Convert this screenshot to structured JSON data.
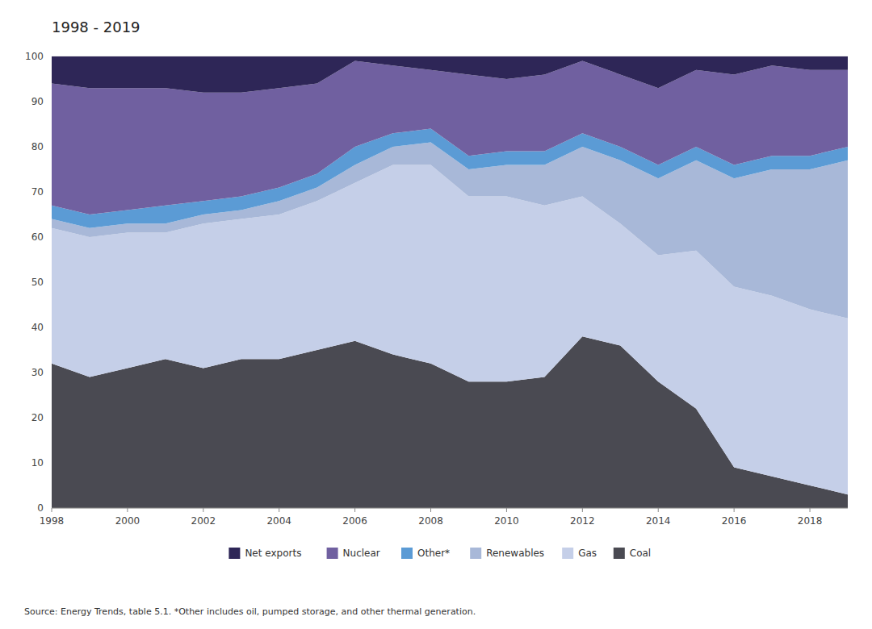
{
  "chart_data": {
    "type": "area",
    "stacked": true,
    "title": "1998 - 2019",
    "x": [
      1998,
      1999,
      2000,
      2001,
      2002,
      2003,
      2004,
      2005,
      2006,
      2007,
      2008,
      2009,
      2010,
      2011,
      2012,
      2013,
      2014,
      2015,
      2016,
      2017,
      2018,
      2019
    ],
    "series": [
      {
        "name": "Coal",
        "color": "#4a4a52",
        "values": [
          32,
          29,
          31,
          33,
          31,
          33,
          33,
          35,
          37,
          34,
          32,
          28,
          28,
          29,
          38,
          36,
          28,
          22,
          9,
          7,
          5,
          3
        ]
      },
      {
        "name": "Gas",
        "color": "#c5cfe8",
        "values": [
          30,
          31,
          30,
          28,
          32,
          31,
          32,
          33,
          35,
          42,
          44,
          41,
          41,
          38,
          31,
          27,
          28,
          35,
          40,
          40,
          39,
          39
        ]
      },
      {
        "name": "Renewables",
        "color": "#a8b8d8",
        "values": [
          2,
          2,
          2,
          2,
          2,
          2,
          3,
          3,
          4,
          4,
          5,
          6,
          7,
          9,
          11,
          14,
          17,
          20,
          24,
          28,
          31,
          35
        ]
      },
      {
        "name": "Other*",
        "color": "#5b9bd5",
        "values": [
          3,
          3,
          3,
          4,
          3,
          3,
          3,
          3,
          4,
          3,
          3,
          3,
          3,
          3,
          3,
          3,
          3,
          3,
          3,
          3,
          3,
          3
        ]
      },
      {
        "name": "Nuclear",
        "color": "#7060a0",
        "values": [
          27,
          28,
          27,
          26,
          24,
          23,
          22,
          20,
          19,
          15,
          13,
          18,
          16,
          17,
          16,
          16,
          17,
          17,
          20,
          20,
          19,
          17
        ]
      },
      {
        "name": "Net exports",
        "color": "#2e2657",
        "values": [
          6,
          7,
          7,
          7,
          8,
          8,
          7,
          6,
          1,
          2,
          3,
          4,
          5,
          4,
          1,
          4,
          7,
          3,
          4,
          2,
          3,
          3
        ]
      }
    ],
    "xlim": [
      1998,
      2019
    ],
    "xticks": [
      1998,
      2000,
      2002,
      2004,
      2006,
      2008,
      2010,
      2012,
      2014,
      2016,
      2018
    ],
    "ylim": [
      0,
      100
    ],
    "yticks": [
      0,
      10,
      20,
      30,
      40,
      50,
      60,
      70,
      80,
      90,
      100
    ],
    "grid": true,
    "legend": "bottom",
    "annotations": [
      "Source: Energy Trends, table 5.1. *Other includes oil, pumped storage, and other thermal generation."
    ]
  }
}
